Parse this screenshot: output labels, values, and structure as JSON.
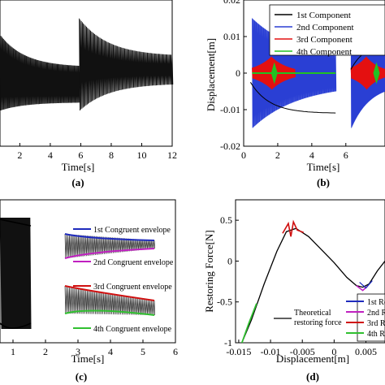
{
  "figure": {
    "panels": [
      {
        "id": "a",
        "caption": "(a)"
      },
      {
        "id": "b",
        "caption": "(b)"
      },
      {
        "id": "c",
        "caption": "(c)"
      },
      {
        "id": "d",
        "caption": "(d)"
      }
    ]
  },
  "chart_data": [
    {
      "panel": "(a)",
      "type": "line",
      "xlabel": "Time[s]",
      "ylabel": "",
      "xlim": [
        0.7,
        12
      ],
      "xticks": [
        "2",
        "4",
        "6",
        "8",
        "10",
        "12"
      ],
      "grid": false,
      "series": [
        {
          "color": "#000000",
          "style": "dense-oscillation",
          "segments": [
            {
              "t": [
                0.7,
                5.9
              ],
              "upper": [
                0.016,
                0.004
              ],
              "lower": [
                -0.012,
                -0.009
              ]
            },
            {
              "t": [
                5.9,
                12
              ],
              "upper": [
                0.022,
                0.008
              ],
              "lower": [
                -0.012,
                -0.002
              ]
            }
          ]
        }
      ]
    },
    {
      "panel": "(b)",
      "type": "line",
      "xlabel": "Time[s]",
      "ylabel": "Displacement[m]",
      "xlim": [
        0,
        12
      ],
      "ylim": [
        -0.02,
        0.02
      ],
      "xticks": [
        0,
        2,
        4,
        6
      ],
      "yticks": [
        -0.02,
        -0.01,
        0,
        0.01,
        0.02
      ],
      "legend": "top-right",
      "series": [
        {
          "name": "1st Component",
          "color": "#000000"
        },
        {
          "name": "2nd Component",
          "color": "#2a3fd4"
        },
        {
          "name": "3rd Component",
          "color": "#e41010"
        },
        {
          "name": "4th Component",
          "color": "#22c122"
        }
      ]
    },
    {
      "panel": "(c)",
      "type": "line",
      "xlabel": "Time[s]",
      "xlim": [
        0.6,
        6
      ],
      "xticks": [
        1,
        2,
        3,
        4,
        5,
        6
      ],
      "legend": "inset",
      "series": [
        {
          "name": "1st Congruent envelope",
          "color": "#1f2bbd"
        },
        {
          "name": "2nd Congruent envelope",
          "color": "#c020c0"
        },
        {
          "name": "3rd Congruent envelope",
          "color": "#d01010"
        },
        {
          "name": "4th Congruent envelope",
          "color": "#30c030"
        }
      ]
    },
    {
      "panel": "(d)",
      "type": "line",
      "xlabel": "Displacement[m]",
      "ylabel": "Restoring Force[N]",
      "xlim": [
        -0.0155,
        0.008
      ],
      "ylim": [
        -1,
        0.75
      ],
      "xticks": [
        -0.015,
        -0.01,
        -0.005,
        0,
        0.005
      ],
      "yticks": [
        -1,
        -0.5,
        0,
        0.5
      ],
      "legend": "right",
      "series": [
        {
          "name": "1st Re",
          "color": "#1f2bbd"
        },
        {
          "name": "2nd Re",
          "color": "#c020c0"
        },
        {
          "name": "3rd Re",
          "color": "#d01010"
        },
        {
          "name": "4th Re",
          "color": "#30c030"
        },
        {
          "name": "Theoretical restoring force",
          "color": "#000000"
        }
      ]
    }
  ]
}
